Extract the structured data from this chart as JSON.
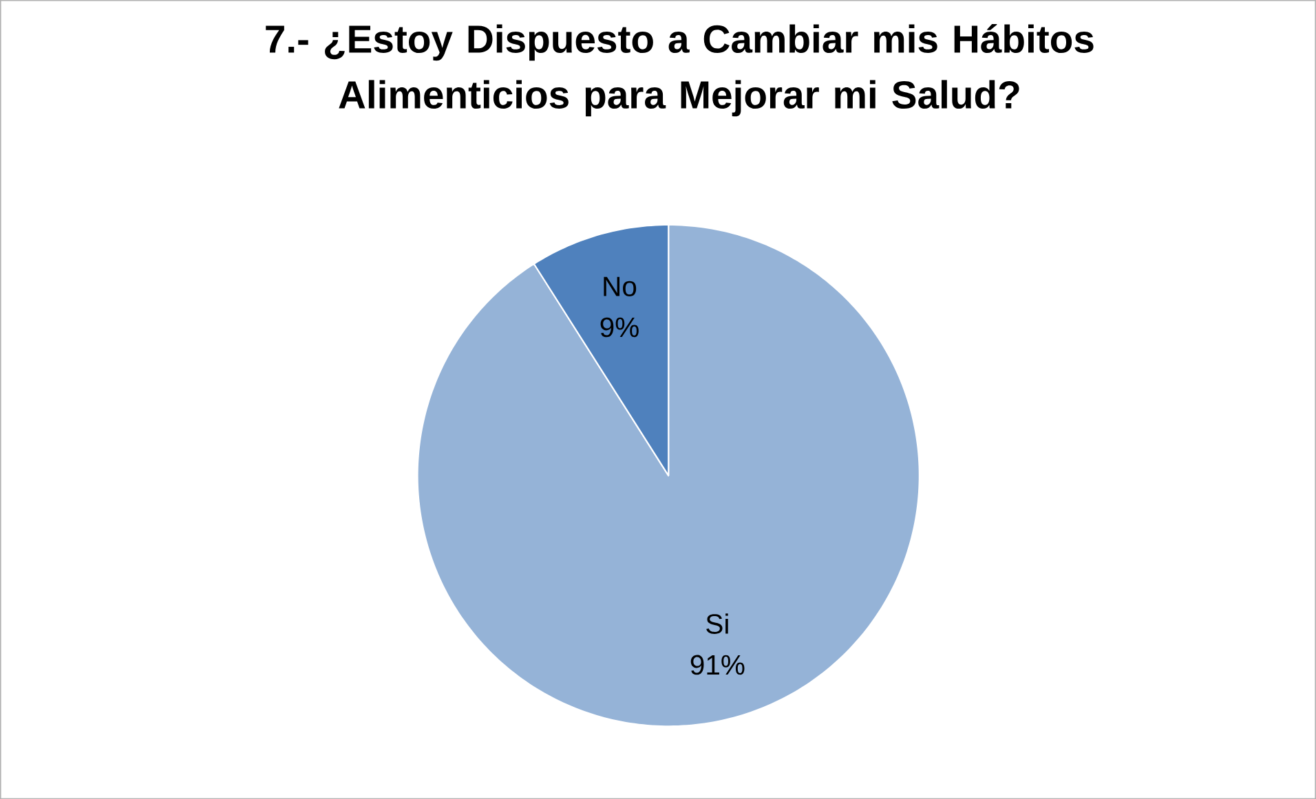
{
  "chart_data": {
    "type": "pie",
    "title": "7.- ¿Estoy Dispuesto a Cambiar mis Hábitos Alimenticios para Mejorar mi Salud?",
    "categories": [
      "Si",
      "No"
    ],
    "values": [
      91,
      9
    ],
    "colors": [
      "#95b3d7",
      "#4f81bd"
    ],
    "value_labels": [
      "91%",
      "9%"
    ]
  }
}
